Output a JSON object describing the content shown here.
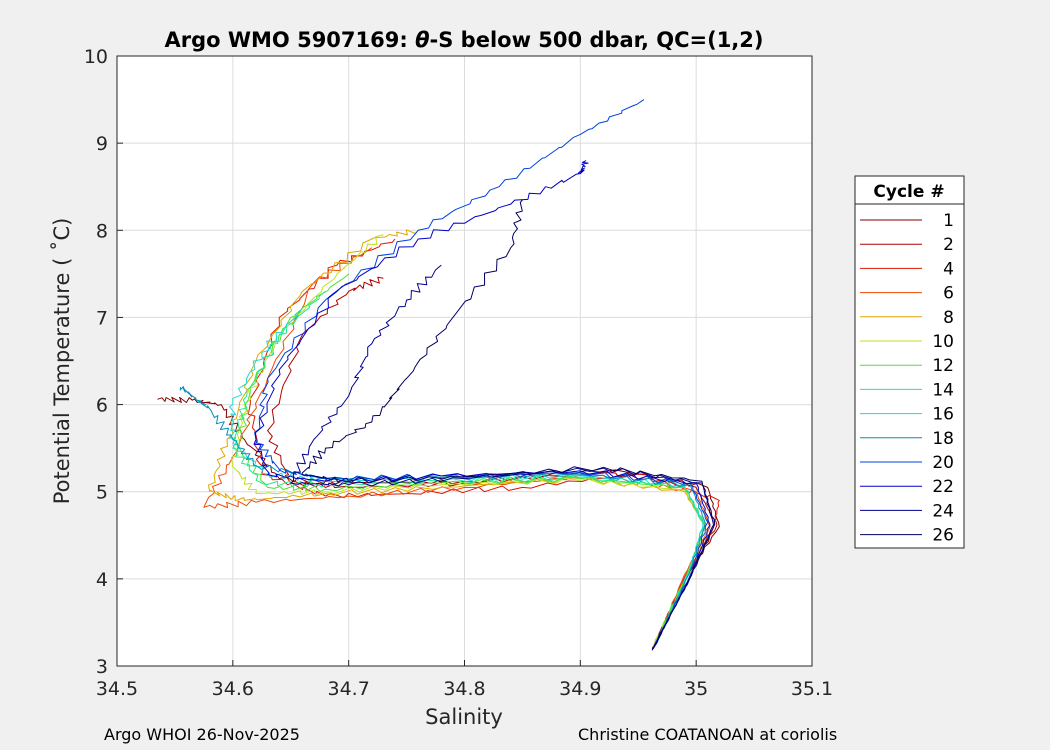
{
  "chart_data": {
    "type": "line",
    "title_prefix": "Argo WMO 5907169: ",
    "title_theta": "θ",
    "title_suffix": "-S below 500 dbar,  QC=(1,2)",
    "xlabel": "Salinity",
    "ylabel": "Potential Temperature ( ˚C)",
    "xlim": [
      34.5,
      35.1
    ],
    "ylim": [
      3,
      10
    ],
    "xticks": [
      "34.5",
      "34.6",
      "34.7",
      "34.8",
      "34.9",
      "35",
      "35.1"
    ],
    "yticks": [
      "3",
      "4",
      "5",
      "6",
      "7",
      "8",
      "9",
      "10"
    ],
    "grid": true,
    "legend_title": "Cycle #",
    "legend_position": "right",
    "series": [
      {
        "name": "1",
        "color": "#800000",
        "points": [
          [
            34.962,
            3.2
          ],
          [
            34.99,
            4.0
          ],
          [
            35.02,
            4.6
          ],
          [
            35.01,
            5.05
          ],
          [
            34.93,
            5.25
          ],
          [
            34.8,
            5.12
          ],
          [
            34.7,
            5.1
          ],
          [
            34.64,
            5.15
          ],
          [
            34.61,
            5.6
          ],
          [
            34.59,
            6.0
          ],
          [
            34.565,
            6.05
          ],
          [
            34.535,
            6.06
          ]
        ]
      },
      {
        "name": "2",
        "color": "#b00000",
        "points": [
          [
            34.963,
            3.22
          ],
          [
            34.991,
            4.0
          ],
          [
            35.018,
            4.62
          ],
          [
            35.0,
            5.05
          ],
          [
            34.92,
            5.22
          ],
          [
            34.8,
            5.1
          ],
          [
            34.7,
            5.05
          ],
          [
            34.65,
            5.1
          ],
          [
            34.63,
            5.7
          ],
          [
            34.66,
            6.8
          ],
          [
            34.7,
            7.3
          ],
          [
            34.73,
            7.45
          ]
        ]
      },
      {
        "name": "4",
        "color": "#dd1500",
        "points": [
          [
            34.964,
            3.24
          ],
          [
            34.99,
            4.02
          ],
          [
            35.015,
            4.6
          ],
          [
            35.02,
            4.9
          ],
          [
            34.95,
            5.2
          ],
          [
            34.85,
            5.05
          ],
          [
            34.75,
            4.98
          ],
          [
            34.68,
            4.95
          ],
          [
            34.625,
            5.2
          ],
          [
            34.615,
            6.0
          ],
          [
            34.64,
            7.0
          ],
          [
            34.69,
            7.6
          ],
          [
            34.74,
            7.9
          ]
        ]
      },
      {
        "name": "6",
        "color": "#f04a00",
        "points": [
          [
            34.965,
            3.25
          ],
          [
            34.99,
            4.05
          ],
          [
            35.012,
            4.6
          ],
          [
            35.0,
            5.0
          ],
          [
            34.91,
            5.18
          ],
          [
            34.8,
            5.05
          ],
          [
            34.7,
            4.95
          ],
          [
            34.62,
            4.88
          ],
          [
            34.575,
            4.82
          ],
          [
            34.6,
            5.4
          ],
          [
            34.63,
            6.3
          ],
          [
            34.67,
            7.4
          ],
          [
            34.72,
            7.8
          ]
        ]
      },
      {
        "name": "8",
        "color": "#e0a800",
        "points": [
          [
            34.963,
            3.22
          ],
          [
            34.992,
            4.02
          ],
          [
            35.01,
            4.55
          ],
          [
            34.99,
            5.0
          ],
          [
            34.9,
            5.15
          ],
          [
            34.78,
            5.05
          ],
          [
            34.68,
            4.98
          ],
          [
            34.61,
            4.9
          ],
          [
            34.58,
            5.0
          ],
          [
            34.595,
            5.6
          ],
          [
            34.62,
            6.5
          ],
          [
            34.66,
            7.3
          ],
          [
            34.72,
            7.9
          ],
          [
            34.76,
            8.0
          ]
        ]
      },
      {
        "name": "10",
        "color": "#c0e020",
        "points": [
          [
            34.964,
            3.25
          ],
          [
            34.992,
            4.05
          ],
          [
            35.008,
            4.6
          ],
          [
            34.99,
            5.02
          ],
          [
            34.9,
            5.13
          ],
          [
            34.78,
            5.08
          ],
          [
            34.68,
            5.0
          ],
          [
            34.62,
            4.98
          ],
          [
            34.6,
            5.3
          ],
          [
            34.61,
            6.0
          ],
          [
            34.64,
            6.8
          ],
          [
            34.69,
            7.5
          ],
          [
            34.73,
            7.95
          ]
        ]
      },
      {
        "name": "12",
        "color": "#50e030",
        "points": [
          [
            34.965,
            3.27
          ],
          [
            34.993,
            4.08
          ],
          [
            35.008,
            4.62
          ],
          [
            34.99,
            5.05
          ],
          [
            34.9,
            5.15
          ],
          [
            34.78,
            5.1
          ],
          [
            34.68,
            5.03
          ],
          [
            34.63,
            5.05
          ],
          [
            34.605,
            5.5
          ],
          [
            34.615,
            6.2
          ],
          [
            34.65,
            7.0
          ],
          [
            34.7,
            7.5
          ]
        ]
      },
      {
        "name": "14",
        "color": "#20e890",
        "points": [
          [
            34.966,
            3.28
          ],
          [
            34.994,
            4.08
          ],
          [
            35.006,
            4.62
          ],
          [
            34.99,
            5.06
          ],
          [
            34.9,
            5.16
          ],
          [
            34.78,
            5.12
          ],
          [
            34.68,
            5.08
          ],
          [
            34.625,
            5.1
          ],
          [
            34.6,
            5.5
          ],
          [
            34.612,
            6.1
          ],
          [
            34.64,
            6.8
          ],
          [
            34.68,
            7.3
          ]
        ]
      },
      {
        "name": "16",
        "color": "#20d8d8",
        "points": [
          [
            34.965,
            3.25
          ],
          [
            34.994,
            4.07
          ],
          [
            35.006,
            4.64
          ],
          [
            34.99,
            5.08
          ],
          [
            34.9,
            5.18
          ],
          [
            34.78,
            5.15
          ],
          [
            34.68,
            5.12
          ],
          [
            34.63,
            5.2
          ],
          [
            34.6,
            5.55
          ],
          [
            34.6,
            6.0
          ],
          [
            34.625,
            6.6
          ],
          [
            34.66,
            7.1
          ]
        ]
      },
      {
        "name": "18",
        "color": "#0090b8",
        "points": [
          [
            34.964,
            3.24
          ],
          [
            34.994,
            4.06
          ],
          [
            35.008,
            4.64
          ],
          [
            34.995,
            5.08
          ],
          [
            34.9,
            5.2
          ],
          [
            34.78,
            5.16
          ],
          [
            34.68,
            5.15
          ],
          [
            34.62,
            5.3
          ],
          [
            34.6,
            5.6
          ],
          [
            34.58,
            5.95
          ],
          [
            34.565,
            6.1
          ],
          [
            34.555,
            6.2
          ]
        ]
      },
      {
        "name": "20",
        "color": "#0040e0",
        "points": [
          [
            34.963,
            3.2
          ],
          [
            34.995,
            4.05
          ],
          [
            35.01,
            4.65
          ],
          [
            34.995,
            5.1
          ],
          [
            34.9,
            5.22
          ],
          [
            34.78,
            5.18
          ],
          [
            34.68,
            5.15
          ],
          [
            34.64,
            5.25
          ],
          [
            34.62,
            5.6
          ],
          [
            34.63,
            6.3
          ],
          [
            34.68,
            7.2
          ],
          [
            34.76,
            8.0
          ],
          [
            34.83,
            8.5
          ],
          [
            34.9,
            9.1
          ],
          [
            34.955,
            9.5
          ]
        ]
      },
      {
        "name": "22",
        "color": "#0000c8",
        "points": [
          [
            34.962,
            3.18
          ],
          [
            34.995,
            4.02
          ],
          [
            35.012,
            4.62
          ],
          [
            35.0,
            5.1
          ],
          [
            34.9,
            5.24
          ],
          [
            34.78,
            5.18
          ],
          [
            34.68,
            5.12
          ],
          [
            34.63,
            5.2
          ],
          [
            34.62,
            5.6
          ],
          [
            34.64,
            6.4
          ],
          [
            34.69,
            7.3
          ],
          [
            34.76,
            7.9
          ],
          [
            34.84,
            8.3
          ],
          [
            34.9,
            8.65
          ],
          [
            34.905,
            8.8
          ]
        ]
      },
      {
        "name": "24",
        "color": "#000090",
        "points": [
          [
            34.963,
            3.2
          ],
          [
            34.995,
            4.03
          ],
          [
            35.015,
            4.62
          ],
          [
            35.005,
            5.1
          ],
          [
            34.92,
            5.27
          ],
          [
            34.8,
            5.15
          ],
          [
            34.7,
            5.08
          ],
          [
            34.65,
            5.1
          ],
          [
            34.67,
            5.6
          ],
          [
            34.7,
            6.1
          ],
          [
            34.72,
            6.7
          ],
          [
            34.75,
            7.2
          ],
          [
            34.78,
            7.6
          ]
        ]
      },
      {
        "name": "26",
        "color": "#000060",
        "points": [
          [
            34.962,
            3.19
          ],
          [
            34.996,
            4.04
          ],
          [
            35.016,
            4.63
          ],
          [
            35.005,
            5.12
          ],
          [
            34.92,
            5.28
          ],
          [
            34.8,
            5.17
          ],
          [
            34.7,
            5.12
          ],
          [
            34.66,
            5.2
          ],
          [
            34.68,
            5.5
          ],
          [
            34.72,
            5.8
          ],
          [
            34.75,
            6.3
          ],
          [
            34.79,
            7.0
          ],
          [
            34.84,
            7.8
          ],
          [
            34.85,
            8.35
          ]
        ]
      }
    ]
  },
  "footer": {
    "left": "Argo WHOI 26-Nov-2025",
    "right": "Christine COATANOAN at coriolis"
  }
}
